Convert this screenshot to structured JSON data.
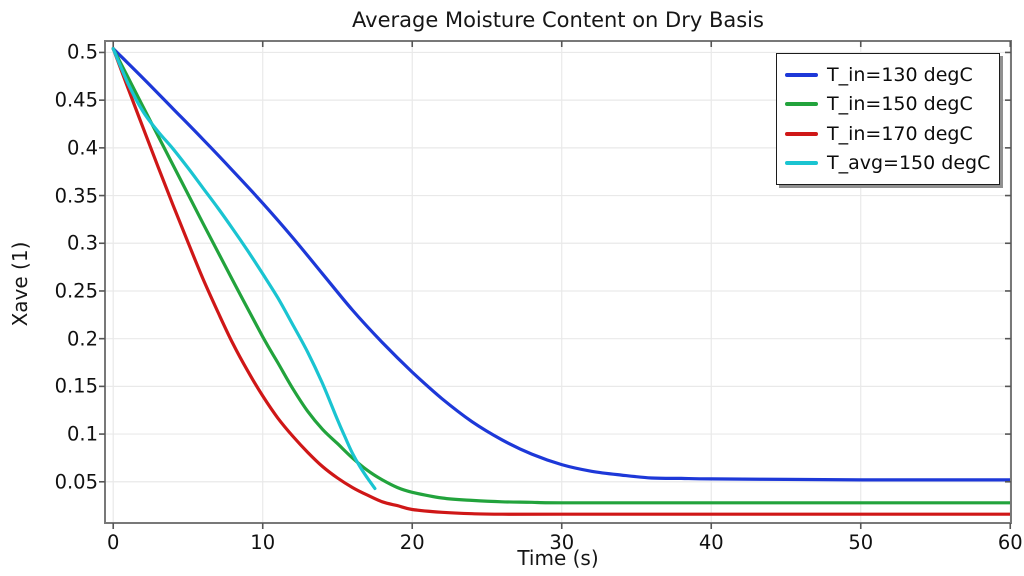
{
  "chart_data": {
    "type": "line",
    "title": "Average Moisture Content on Dry Basis",
    "xlabel": "Time (s)",
    "ylabel": "Xave (1)",
    "x_range": [
      -0.55,
      60.05
    ],
    "y_range": [
      0.0068,
      0.512
    ],
    "x_ticks": [
      0,
      10,
      20,
      30,
      40,
      50,
      60
    ],
    "y_ticks": [
      0.05,
      0.1,
      0.15,
      0.2,
      0.25,
      0.3,
      0.35,
      0.4,
      0.45,
      0.5
    ],
    "grid": true,
    "legend_position": "top-right",
    "frame_color": "#787878",
    "grid_color": "#e9e9e9",
    "series": [
      {
        "name": "T_in=130 degC",
        "color": "#1d38d8",
        "points": [
          [
            0,
            0.504
          ],
          [
            2,
            0.473
          ],
          [
            4,
            0.441
          ],
          [
            6,
            0.409
          ],
          [
            8,
            0.376
          ],
          [
            10,
            0.342
          ],
          [
            12,
            0.306
          ],
          [
            14,
            0.268
          ],
          [
            16,
            0.23
          ],
          [
            18,
            0.196
          ],
          [
            20,
            0.165
          ],
          [
            22,
            0.137
          ],
          [
            24,
            0.113
          ],
          [
            26,
            0.094
          ],
          [
            28,
            0.079
          ],
          [
            30,
            0.068
          ],
          [
            32,
            0.061
          ],
          [
            34,
            0.057
          ],
          [
            36,
            0.054
          ],
          [
            38,
            0.0535
          ],
          [
            40,
            0.053
          ],
          [
            45,
            0.0525
          ],
          [
            50,
            0.052
          ],
          [
            55,
            0.052
          ],
          [
            60,
            0.052
          ]
        ]
      },
      {
        "name": "T_in=150 degC",
        "color": "#22a33c",
        "points": [
          [
            0,
            0.504
          ],
          [
            2,
            0.443
          ],
          [
            4,
            0.382
          ],
          [
            6,
            0.321
          ],
          [
            8,
            0.261
          ],
          [
            10,
            0.202
          ],
          [
            11,
            0.175
          ],
          [
            12,
            0.148
          ],
          [
            13,
            0.124
          ],
          [
            14,
            0.105
          ],
          [
            15,
            0.09
          ],
          [
            16,
            0.075
          ],
          [
            17,
            0.062
          ],
          [
            18,
            0.052
          ],
          [
            19,
            0.044
          ],
          [
            20,
            0.039
          ],
          [
            22,
            0.033
          ],
          [
            24,
            0.0305
          ],
          [
            26,
            0.029
          ],
          [
            28,
            0.0285
          ],
          [
            30,
            0.028
          ],
          [
            40,
            0.028
          ],
          [
            50,
            0.028
          ],
          [
            60,
            0.028
          ]
        ]
      },
      {
        "name": "T_in=170 degC",
        "color": "#cf1717",
        "points": [
          [
            0,
            0.504
          ],
          [
            1,
            0.462
          ],
          [
            2,
            0.421
          ],
          [
            3,
            0.38
          ],
          [
            4,
            0.34
          ],
          [
            5,
            0.301
          ],
          [
            6,
            0.263
          ],
          [
            7,
            0.228
          ],
          [
            8,
            0.195
          ],
          [
            9,
            0.166
          ],
          [
            10,
            0.14
          ],
          [
            11,
            0.117
          ],
          [
            12,
            0.098
          ],
          [
            13,
            0.081
          ],
          [
            14,
            0.066
          ],
          [
            15,
            0.054
          ],
          [
            16,
            0.044
          ],
          [
            17,
            0.036
          ],
          [
            18,
            0.029
          ],
          [
            19,
            0.025
          ],
          [
            20,
            0.021
          ],
          [
            22,
            0.018
          ],
          [
            24,
            0.0165
          ],
          [
            26,
            0.016
          ],
          [
            30,
            0.016
          ],
          [
            40,
            0.016
          ],
          [
            50,
            0.016
          ],
          [
            60,
            0.016
          ]
        ]
      },
      {
        "name": "T_avg=150 degC",
        "color": "#1ac4d1",
        "points": [
          [
            0,
            0.504
          ],
          [
            1,
            0.467
          ],
          [
            2,
            0.438
          ],
          [
            3,
            0.417
          ],
          [
            4,
            0.399
          ],
          [
            5,
            0.379
          ],
          [
            6,
            0.358
          ],
          [
            7,
            0.337
          ],
          [
            8,
            0.315
          ],
          [
            9,
            0.292
          ],
          [
            10,
            0.268
          ],
          [
            11,
            0.243
          ],
          [
            12,
            0.215
          ],
          [
            13,
            0.186
          ],
          [
            14,
            0.153
          ],
          [
            15,
            0.115
          ],
          [
            15.5,
            0.097
          ],
          [
            16,
            0.08
          ],
          [
            16.5,
            0.066
          ],
          [
            17,
            0.054
          ],
          [
            17.5,
            0.043
          ]
        ]
      }
    ]
  }
}
